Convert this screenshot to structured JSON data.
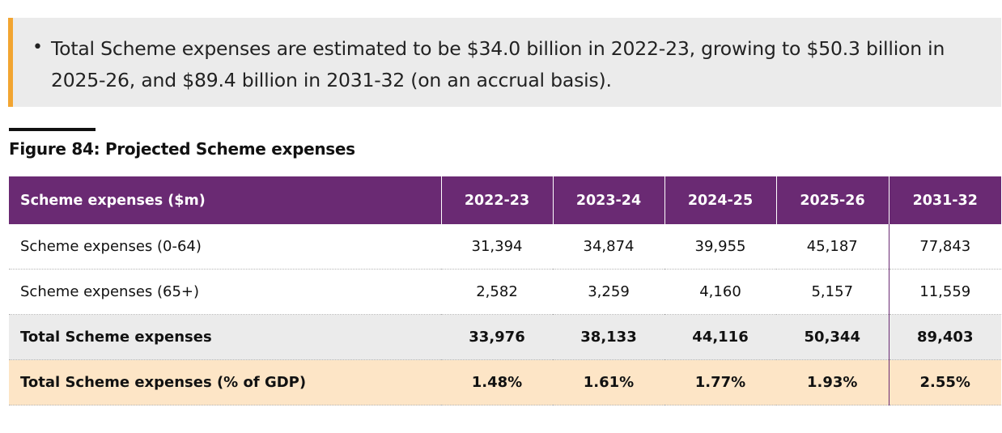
{
  "callout": {
    "bullet": "•",
    "text": "Total Scheme expenses are estimated to be $34.0 billion in 2022-23, growing to $50.3 billion in 2025-26, and $89.4 billion in 2031-32 (on an accrual basis)."
  },
  "figure": {
    "title": "Figure 84: Projected Scheme expenses"
  },
  "table": {
    "headers": [
      "Scheme expenses ($m)",
      "2022-23",
      "2023-24",
      "2024-25",
      "2025-26",
      "2031-32"
    ],
    "rows": [
      {
        "cells": [
          "Scheme expenses (0-64)",
          "31,394",
          "34,874",
          "39,955",
          "45,187",
          "77,843"
        ]
      },
      {
        "cells": [
          "Scheme expenses (65+)",
          "2,582",
          "3,259",
          "4,160",
          "5,157",
          "11,559"
        ]
      },
      {
        "cells": [
          "Total Scheme expenses",
          "33,976",
          "38,133",
          "44,116",
          "50,344",
          "89,403"
        ]
      },
      {
        "cells": [
          "Total Scheme expenses (% of GDP)",
          "1.48%",
          "1.61%",
          "1.77%",
          "1.93%",
          "2.55%"
        ]
      }
    ]
  },
  "colors": {
    "header_purple": "#6a2a73",
    "callout_accent": "#f2a531",
    "callout_bg": "#ebebeb",
    "total_row_bg": "#ebebeb",
    "gdp_row_bg": "#fde5c6"
  }
}
